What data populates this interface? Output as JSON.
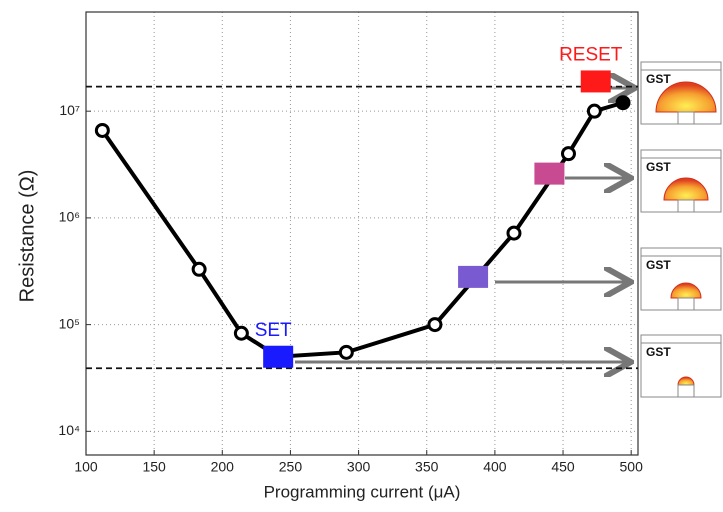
{
  "chart_data": {
    "type": "line",
    "xlabel": "Programming current (μA)",
    "ylabel": "Resistance (Ω)",
    "xlim": [
      100,
      505
    ],
    "xticks": [
      100,
      150,
      200,
      250,
      300,
      350,
      400,
      450,
      500
    ],
    "ylim": [
      6000,
      85000000
    ],
    "yscale": "log",
    "yticks": [
      {
        "value": 10000,
        "label": "10⁴"
      },
      {
        "value": 100000,
        "label": "10⁵"
      },
      {
        "value": 1000000,
        "label": "10⁶"
      },
      {
        "value": 10000000,
        "label": "10⁷"
      }
    ],
    "grid": true,
    "x": [
      112,
      183,
      214,
      241,
      291,
      356,
      414,
      454,
      473,
      494
    ],
    "series": [
      {
        "color": "#000000",
        "values": [
          6600000,
          330000,
          83000,
          50000,
          55000,
          100000,
          720000,
          4000000,
          10000000,
          12000000
        ],
        "filled": [
          false,
          false,
          false,
          false,
          false,
          false,
          false,
          false,
          false,
          true
        ]
      }
    ],
    "markers": [
      {
        "x": 241,
        "y": 50000,
        "label": "SET",
        "color": "#1a1aff"
      },
      {
        "x": 384,
        "y": 280000,
        "color": "#7a5ad0"
      },
      {
        "x": 440,
        "y": 2600000,
        "color": "#c84a90"
      },
      {
        "x": 474,
        "y": 19000000,
        "label": "RESET",
        "color": "#ff1a1a"
      }
    ],
    "hlines": [
      17000000,
      39000
    ],
    "panels": [
      "GST",
      "GST",
      "GST",
      "GST"
    ]
  }
}
